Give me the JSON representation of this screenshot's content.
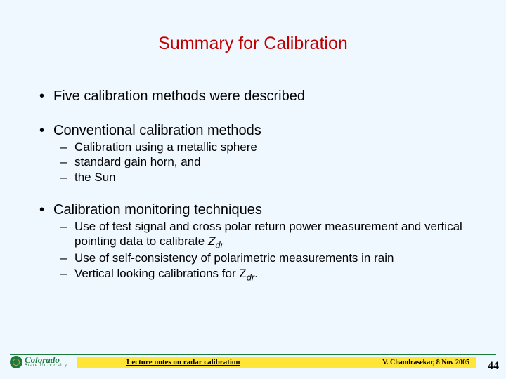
{
  "colors": {
    "background": "#f0f8ff",
    "title": "#c00000",
    "text": "#000000",
    "footer_line": "#1e7a3c",
    "footer_bar": "#ffe536",
    "logo_green": "#1e7a3c"
  },
  "title": "Summary for Calibration",
  "bullets": {
    "b1": "Five calibration methods were described",
    "b2": "Conventional calibration methods",
    "b2_subs": {
      "s1": "Calibration using a metallic sphere",
      "s2": "standard gain horn, and",
      "s3": "the Sun"
    },
    "b3": "Calibration monitoring techniques",
    "b3_subs": {
      "s1a": "Use of test signal and cross polar return power measurement and  vertical pointing  data to calibrate ",
      "s1b": "Z",
      "s1c": "dr",
      "s2a": "Use of self-consistency of polarimetric measurements in rain",
      "s3a": "Vertical looking calibrations for Z",
      "s3b": "dr",
      "s3c": "."
    }
  },
  "footer": {
    "logo_main": "Colorado",
    "logo_sub": "State University",
    "center": "Lecture notes on radar calibration",
    "right": "V. Chandrasekar, 8 Nov 2005",
    "page": "44"
  }
}
